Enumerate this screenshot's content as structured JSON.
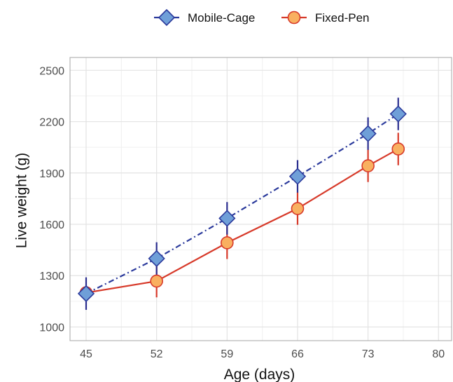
{
  "chart_data": {
    "type": "line",
    "title": "",
    "xlabel": "Age (days)",
    "ylabel": "Live weight (g)",
    "x_ticks": [
      45,
      52,
      59,
      66,
      73,
      80
    ],
    "y_ticks": [
      1000,
      1300,
      1600,
      1900,
      2200,
      2500
    ],
    "xlim": [
      43.4,
      81.3
    ],
    "ylim": [
      920,
      2575
    ],
    "grid": true,
    "legend_position": "top",
    "series": [
      {
        "name": "Mobile-Cage",
        "x": [
          45,
          52,
          59,
          66,
          73,
          76
        ],
        "y": [
          1195,
          1400,
          1635,
          1880,
          2130,
          2245
        ],
        "error": [
          95,
          95,
          95,
          95,
          95,
          95
        ],
        "marker": "diamond",
        "line_style": "dash-dot",
        "line_color": "#2b3a9c",
        "marker_fill": "#6f9fd8",
        "marker_edge": "#2b3a9c",
        "error_color": "#2b2e8f"
      },
      {
        "name": "Fixed-Pen",
        "x": [
          45,
          52,
          59,
          66,
          73,
          76
        ],
        "y": [
          1200,
          1268,
          1492,
          1692,
          1942,
          2040
        ],
        "error": [
          40,
          95,
          95,
          95,
          95,
          95
        ],
        "marker": "circle",
        "line_style": "solid",
        "line_color": "#d73a2a",
        "marker_fill": "#f9b060",
        "marker_edge": "#d73a2a",
        "error_color": "#d73a2a"
      }
    ]
  }
}
